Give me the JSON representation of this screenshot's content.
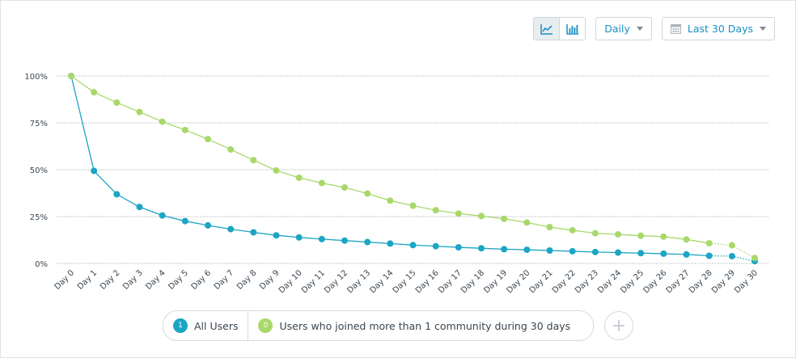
{
  "toolbar": {
    "view_toggles": [
      {
        "icon": "line-chart-icon",
        "active": true
      },
      {
        "icon": "bar-chart-icon",
        "active": false
      }
    ],
    "interval": {
      "label": "Daily"
    },
    "range": {
      "label": "Last 30 Days",
      "icon": "calendar-icon"
    }
  },
  "colors": {
    "series_a": "#1ba5c4",
    "series_b": "#a8d86a",
    "grid": "#9aa3a8",
    "tick": "#3a4650"
  },
  "chart_data": {
    "type": "line",
    "title": "",
    "xlabel": "",
    "ylabel": "",
    "x": [
      "Day 0",
      "Day 1",
      "Day 2",
      "Day 3",
      "Day 4",
      "Day 5",
      "Day 6",
      "Day 7",
      "Day 8",
      "Day 9",
      "Day 10",
      "Day 11",
      "Day 12",
      "Day 13",
      "Day 14",
      "Day 15",
      "Day 16",
      "Day 17",
      "Day 18",
      "Day 19",
      "Day 20",
      "Day 21",
      "Day 22",
      "Day 23",
      "Day 24",
      "Day 25",
      "Day 26",
      "Day 27",
      "Day 28",
      "Day 29",
      "Day 30"
    ],
    "y_ticks": [
      "0%",
      "25%",
      "50%",
      "75%",
      "100%"
    ],
    "ylim": [
      0,
      100
    ],
    "grid": true,
    "series": [
      {
        "name": "All Users",
        "badge": "1",
        "values": [
          100,
          49.4,
          36.9,
          30.1,
          25.6,
          22.6,
          20.3,
          18.3,
          16.6,
          15.0,
          13.9,
          13.0,
          12.2,
          11.4,
          10.6,
          9.8,
          9.2,
          8.6,
          8.1,
          7.6,
          7.3,
          6.9,
          6.5,
          6.1,
          5.8,
          5.5,
          5.2,
          4.8,
          4.1,
          3.9,
          1.2
        ]
      },
      {
        "name": "Users who joined more than 1 community during 30 days",
        "badge": "0",
        "values": [
          100,
          91.3,
          85.8,
          80.8,
          75.6,
          71.2,
          66.3,
          60.8,
          55.1,
          49.6,
          45.7,
          42.9,
          40.5,
          37.3,
          33.5,
          30.8,
          28.4,
          26.6,
          25.3,
          23.8,
          21.8,
          19.4,
          17.7,
          16.1,
          15.5,
          14.8,
          14.3,
          12.8,
          10.8,
          9.7,
          2.9
        ]
      }
    ]
  }
}
